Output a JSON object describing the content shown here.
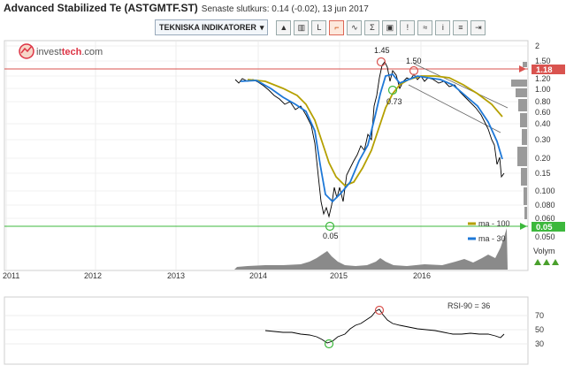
{
  "header": {
    "title": "Advanced Stabilized Te (ASTGMTF.ST)",
    "subtitle": "Senaste slutkurs: 0.14 (-0.02), 13 jun 2017"
  },
  "toolbar": {
    "dropdown_label": "TEKNISKA INDIKATORER",
    "dropdown_arrow": "▾",
    "buttons": [
      {
        "icon": "chart-mountain-icon",
        "glyph": "▲"
      },
      {
        "icon": "chart-bars-icon",
        "glyph": "▥"
      },
      {
        "icon": "chart-line-icon",
        "glyph": "L"
      },
      {
        "icon": "chart-step-icon",
        "glyph": "⌐"
      },
      {
        "icon": "chart-wave-icon",
        "glyph": "∿"
      },
      {
        "icon": "sum-icon",
        "glyph": "Σ"
      },
      {
        "icon": "camera-icon",
        "glyph": "▣"
      },
      {
        "icon": "alert-icon",
        "glyph": "!"
      },
      {
        "icon": "compare-icon",
        "glyph": "≈"
      },
      {
        "icon": "info-icon",
        "glyph": "i"
      },
      {
        "icon": "menu-icon",
        "glyph": "≡"
      },
      {
        "icon": "export-icon",
        "glyph": "⇥"
      }
    ]
  },
  "logo": {
    "text_a": "invest",
    "text_b": "tech",
    "text_c": ".com"
  },
  "colors": {
    "ma_long": "#b5a000",
    "ma_short": "#1e78d7",
    "resistance": "#d9534f",
    "support": "#3cb83c",
    "price": "#000000",
    "volume": "#7a7a7a"
  },
  "chart_data": {
    "type": "line",
    "price_axis": {
      "ticks": [
        "2",
        "1.50",
        "1.20",
        "1.00",
        "0.80",
        "0.60",
        "0.40",
        "0.30",
        "0.20",
        "0.15",
        "0.100",
        "0.080",
        "0.060",
        "0.050"
      ]
    },
    "x_axis": {
      "ticks": [
        "2011",
        "2012",
        "2013",
        "2014",
        "2015",
        "2016"
      ]
    },
    "annotations": [
      {
        "label": "1.45",
        "kind": "top"
      },
      {
        "label": "1.50",
        "kind": "top"
      },
      {
        "label": "0.73",
        "kind": "bottom"
      },
      {
        "label": "0.05",
        "kind": "bottom"
      }
    ],
    "level_labels": {
      "resistance": "1.18",
      "support": "0.05"
    },
    "legend": [
      {
        "label": "ma - 100",
        "color": "#b5a000"
      },
      {
        "label": "ma - 30",
        "color": "#1e78d7"
      }
    ],
    "volume_label": "Volym",
    "rsi": {
      "label": "RSI-90 = 36",
      "ticks": [
        "70",
        "50",
        "30"
      ]
    }
  }
}
